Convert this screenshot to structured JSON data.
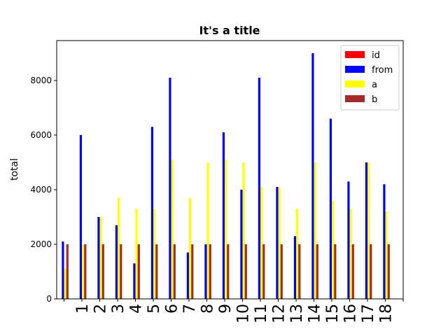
{
  "chart_data": {
    "type": "bar",
    "title": "It's a title",
    "y_label": "total",
    "categories": [
      null,
      "1",
      "2",
      "3",
      "4",
      "5",
      "6",
      "7",
      "8",
      "9",
      "10",
      "11",
      "12",
      "13",
      "14",
      "15",
      "16",
      "17",
      "18",
      null
    ],
    "series": [
      {
        "name": "id",
        "color": "#ff0000",
        "values": [
          0,
          1,
          2,
          3,
          4,
          5,
          6,
          7,
          8,
          9,
          10,
          11,
          12,
          13,
          14,
          15,
          16,
          17,
          18,
          null
        ]
      },
      {
        "name": "from",
        "color": "#0000ff",
        "values": [
          2100,
          6000,
          3000,
          2700,
          1300,
          6300,
          8100,
          1700,
          2000,
          6100,
          4000,
          8100,
          4100,
          2300,
          9000,
          6600,
          4300,
          5000,
          4200,
          null
        ]
      },
      {
        "name": "a",
        "color": "#ffff00",
        "values": [
          1100,
          2000,
          3000,
          3700,
          3300,
          3300,
          5100,
          3700,
          5000,
          5100,
          5000,
          4100,
          4100,
          3300,
          5000,
          3600,
          3300,
          5000,
          3200,
          null
        ]
      },
      {
        "name": "b",
        "color": "#a52a2a",
        "values": [
          2000,
          2000,
          2000,
          2000,
          2000,
          2000,
          2000,
          2000,
          2000,
          2000,
          2000,
          2000,
          2000,
          2000,
          2000,
          2000,
          2000,
          2000,
          2000,
          null
        ]
      }
    ],
    "ylim": [
      0,
      9460
    ],
    "yticks": [
      0,
      2000,
      4000,
      6000,
      8000
    ],
    "grid": false,
    "legend": "upper-right"
  }
}
